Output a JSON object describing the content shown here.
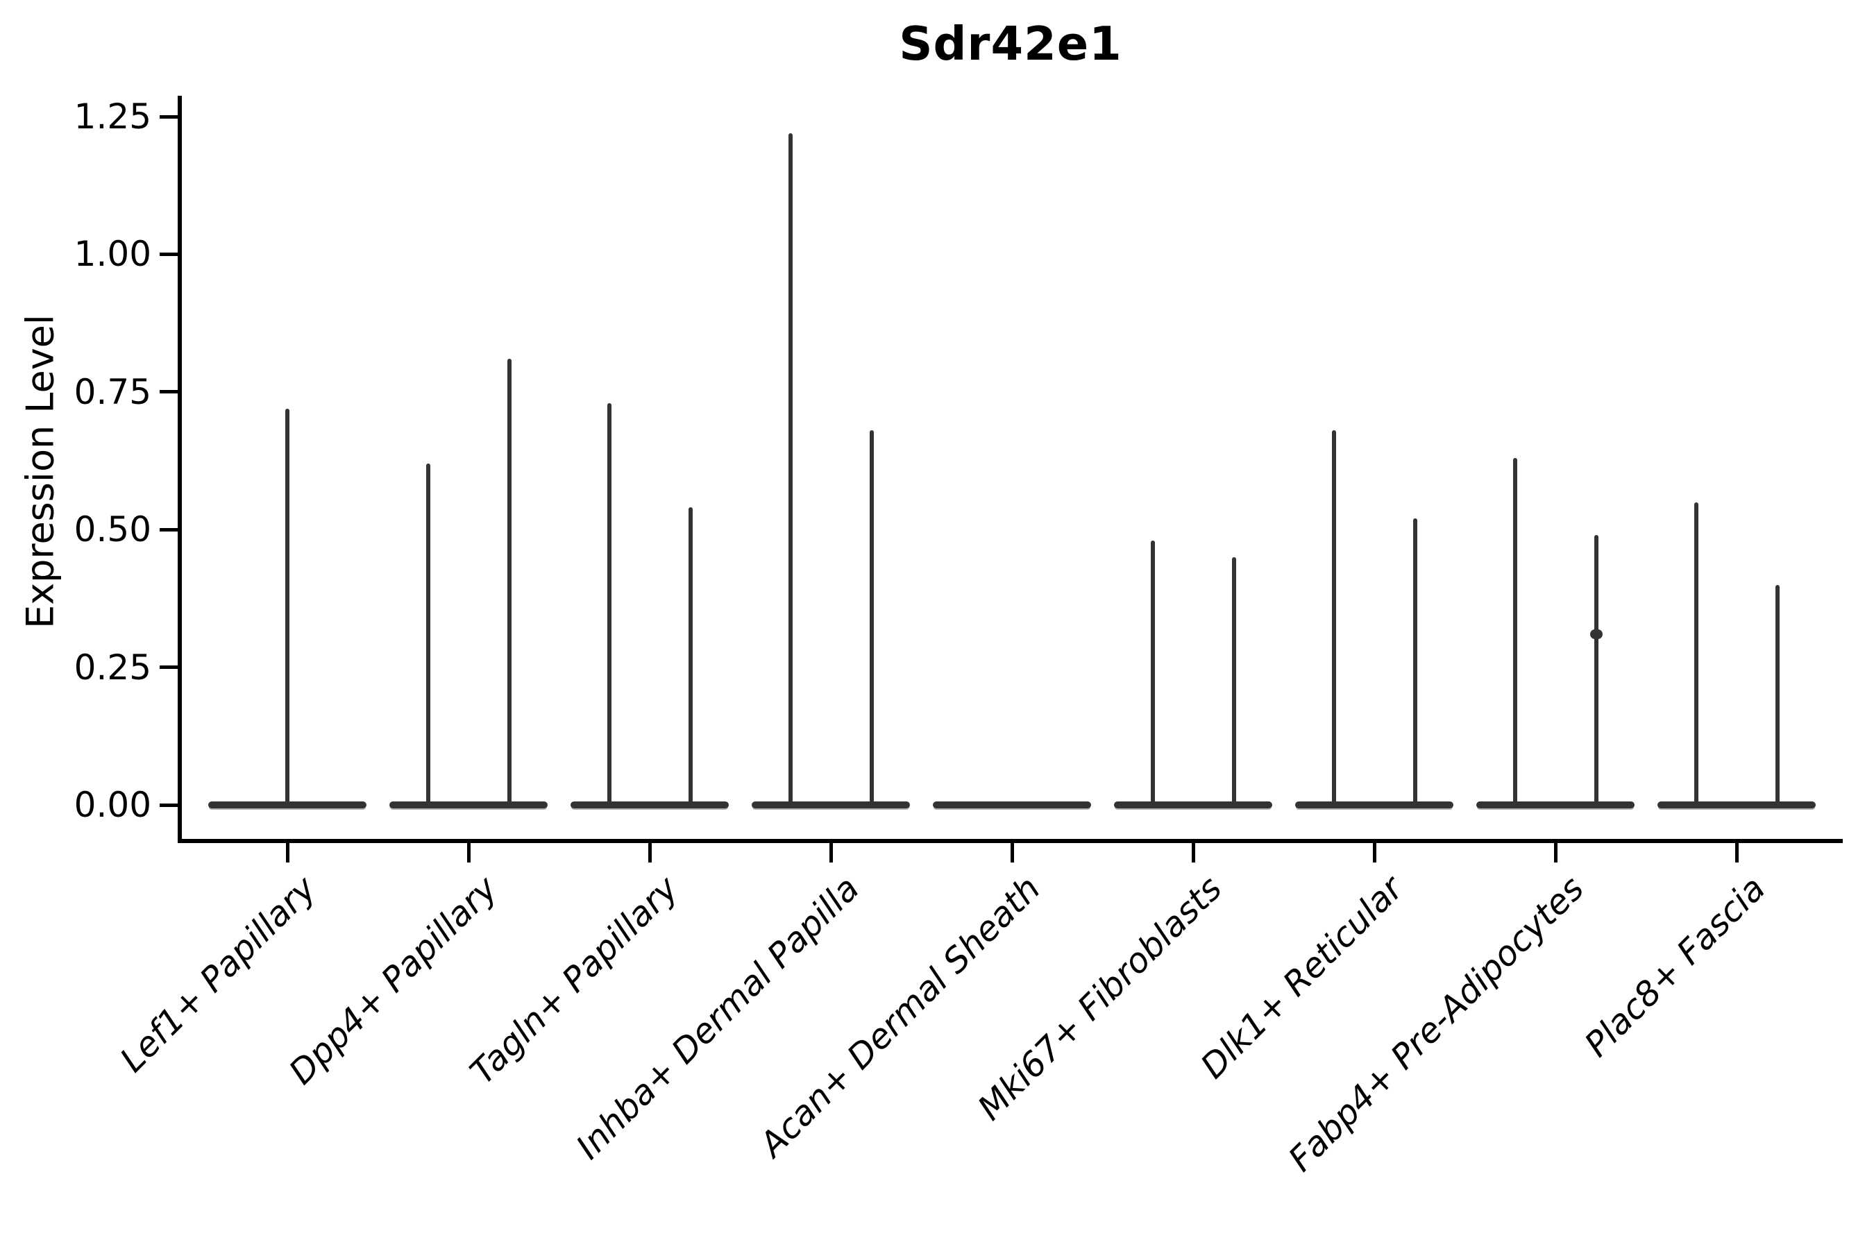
{
  "figure": {
    "background_color": "#ffffff",
    "axis_color": "#000000",
    "violin_color": "#333333"
  },
  "chart_data": {
    "type": "violin",
    "title": "Sdr42e1",
    "xlabel": "",
    "ylabel": "Expression Level",
    "ylim": [
      -0.07,
      1.29
    ],
    "yticks": [
      0,
      0.25,
      0.5,
      0.75,
      1.0,
      1.25
    ],
    "ytick_labels": [
      "0.00",
      "0.25",
      "0.50",
      "0.75",
      "1.00",
      "1.25"
    ],
    "grid": false,
    "legend": null,
    "x_tick_rotation_deg": 45,
    "categories": [
      "Lef1+ Papillary",
      "Dpp4+ Papillary",
      "Tagln+ Papillary",
      "Inhba+ Dermal Papilla",
      "Acan+ Dermal Sheath",
      "Mki67+ Fibroblasts",
      "Dlk1+ Reticular",
      "Fabp4+ Pre-Adipocytes",
      "Plac8+ Fascia"
    ],
    "violins": [
      {
        "category": "Lef1+ Papillary",
        "spikes": [
          {
            "pos": "center",
            "max": 0.72
          }
        ]
      },
      {
        "category": "Dpp4+ Papillary",
        "spikes": [
          {
            "pos": "left",
            "max": 0.62
          },
          {
            "pos": "right",
            "max": 0.81
          }
        ]
      },
      {
        "category": "Tagln+ Papillary",
        "spikes": [
          {
            "pos": "left",
            "max": 0.73
          },
          {
            "pos": "right",
            "max": 0.54
          }
        ]
      },
      {
        "category": "Inhba+ Dermal Papilla",
        "spikes": [
          {
            "pos": "left",
            "max": 1.22
          },
          {
            "pos": "right",
            "max": 0.68
          }
        ]
      },
      {
        "category": "Acan+ Dermal Sheath",
        "spikes": []
      },
      {
        "category": "Mki67+ Fibroblasts",
        "spikes": [
          {
            "pos": "left",
            "max": 0.48
          },
          {
            "pos": "right",
            "max": 0.45
          }
        ]
      },
      {
        "category": "Dlk1+ Reticular",
        "spikes": [
          {
            "pos": "left",
            "max": 0.68
          },
          {
            "pos": "right",
            "max": 0.52
          }
        ]
      },
      {
        "category": "Fabp4+ Pre-Adipocytes",
        "spikes": [
          {
            "pos": "left",
            "max": 0.63
          },
          {
            "pos": "right",
            "max": 0.49,
            "bump_at": 0.31
          }
        ]
      },
      {
        "category": "Plac8+ Fascia",
        "spikes": [
          {
            "pos": "left",
            "max": 0.55
          },
          {
            "pos": "right",
            "max": 0.4
          }
        ]
      }
    ],
    "baseline_value": 0
  }
}
